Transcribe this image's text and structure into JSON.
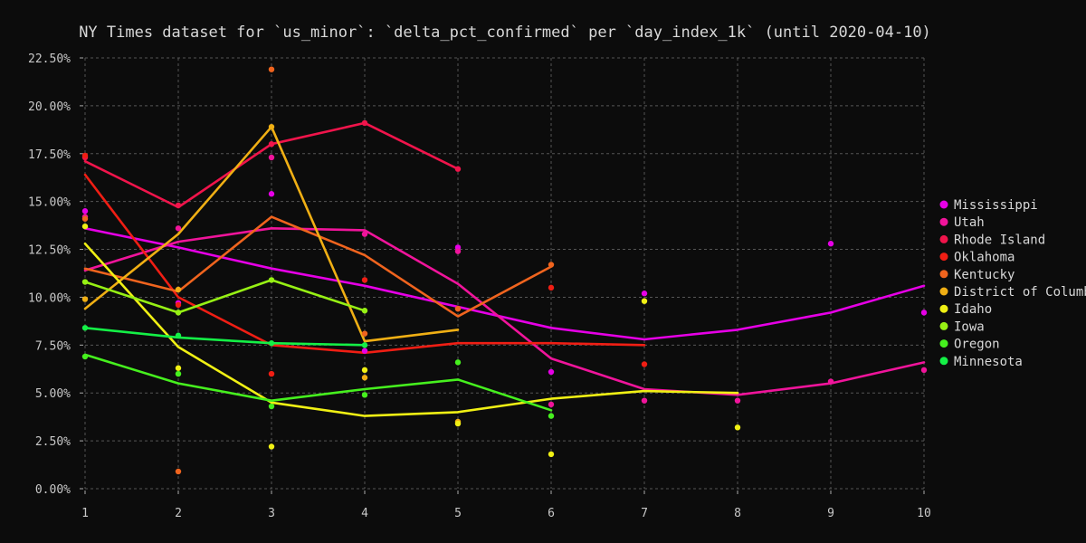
{
  "chart_data": {
    "type": "line",
    "title": "NY Times dataset for `us_minor`: `delta_pct_confirmed` per `day_index_1k` (until 2020-04-10)",
    "xlabel": "",
    "ylabel": "",
    "xlim": [
      1,
      10
    ],
    "ylim": [
      0,
      22.5
    ],
    "x_ticks": [
      "1",
      "2",
      "3",
      "4",
      "5",
      "6",
      "7",
      "8",
      "9",
      "10"
    ],
    "y_ticks": [
      "0.00%",
      "2.50%",
      "5.00%",
      "7.50%",
      "10.00%",
      "12.50%",
      "15.00%",
      "17.50%",
      "20.00%",
      "22.50%"
    ],
    "grid": true,
    "legend_position": "right",
    "series": [
      {
        "name": "Mississippi",
        "color": "#e600e6",
        "line": [
          [
            1,
            13.6
          ],
          [
            2,
            12.6
          ],
          [
            3,
            11.5
          ],
          [
            4,
            10.6
          ],
          [
            5,
            9.5
          ],
          [
            6,
            8.4
          ],
          [
            7,
            7.8
          ],
          [
            8,
            8.3
          ],
          [
            9,
            9.2
          ],
          [
            10,
            10.6
          ]
        ],
        "points": [
          [
            1,
            14.5
          ],
          [
            2,
            9.7
          ],
          [
            3,
            15.4
          ],
          [
            4,
            7.2
          ],
          [
            5,
            12.6
          ],
          [
            6,
            6.1
          ],
          [
            7,
            10.2
          ],
          [
            9,
            12.8
          ],
          [
            10,
            9.2
          ]
        ]
      },
      {
        "name": "Utah",
        "color": "#f0149b",
        "line": [
          [
            1,
            11.4
          ],
          [
            2,
            12.9
          ],
          [
            3,
            13.6
          ],
          [
            4,
            13.5
          ],
          [
            5,
            10.7
          ],
          [
            6,
            6.8
          ],
          [
            7,
            5.2
          ],
          [
            8,
            4.9
          ],
          [
            9,
            5.5
          ],
          [
            10,
            6.6
          ]
        ],
        "points": [
          [
            1,
            14.2
          ],
          [
            2,
            13.6
          ],
          [
            3,
            17.3
          ],
          [
            4,
            13.3
          ],
          [
            5,
            12.4
          ],
          [
            6,
            4.4
          ],
          [
            7,
            4.6
          ],
          [
            8,
            4.6
          ],
          [
            9,
            5.6
          ],
          [
            10,
            6.2
          ]
        ]
      },
      {
        "name": "Rhode Island",
        "color": "#f0144b",
        "line": [
          [
            1,
            17.1
          ],
          [
            2,
            14.7
          ],
          [
            3,
            18.0
          ],
          [
            4,
            19.1
          ],
          [
            5,
            16.7
          ]
        ],
        "points": [
          [
            1,
            17.3
          ],
          [
            2,
            14.8
          ],
          [
            3,
            18.0
          ],
          [
            4,
            19.1
          ],
          [
            5,
            16.7
          ]
        ]
      },
      {
        "name": "Oklahoma",
        "color": "#f01e14",
        "line": [
          [
            1,
            16.4
          ],
          [
            2,
            10.0
          ],
          [
            3,
            7.5
          ],
          [
            4,
            7.1
          ],
          [
            5,
            7.6
          ],
          [
            6,
            7.6
          ],
          [
            7,
            7.5
          ]
        ],
        "points": [
          [
            1,
            17.4
          ],
          [
            2,
            9.6
          ],
          [
            3,
            6.0
          ],
          [
            4,
            10.9
          ],
          [
            5,
            9.4
          ],
          [
            6,
            10.5
          ],
          [
            7,
            6.5
          ]
        ]
      },
      {
        "name": "Kentucky",
        "color": "#f0641e",
        "line": [
          [
            1,
            11.5
          ],
          [
            2,
            10.3
          ],
          [
            3,
            14.2
          ],
          [
            4,
            12.2
          ],
          [
            5,
            9.0
          ],
          [
            6,
            11.6
          ]
        ],
        "points": [
          [
            1,
            14.1
          ],
          [
            2,
            0.9
          ],
          [
            3,
            21.9
          ],
          [
            4,
            8.1
          ],
          [
            5,
            9.4
          ],
          [
            6,
            11.7
          ]
        ]
      },
      {
        "name": "District of Columbia",
        "color": "#f0af14",
        "line": [
          [
            1,
            9.4
          ],
          [
            2,
            13.3
          ],
          [
            3,
            18.9
          ],
          [
            4,
            7.7
          ],
          [
            5,
            8.3
          ]
        ],
        "points": [
          [
            1,
            9.9
          ],
          [
            2,
            10.4
          ],
          [
            3,
            18.9
          ],
          [
            4,
            5.8
          ],
          [
            5,
            3.5
          ]
        ]
      },
      {
        "name": "Idaho",
        "color": "#f0f014",
        "line": [
          [
            1,
            12.8
          ],
          [
            2,
            7.4
          ],
          [
            3,
            4.5
          ],
          [
            4,
            3.8
          ],
          [
            5,
            4.0
          ],
          [
            6,
            4.7
          ],
          [
            7,
            5.1
          ],
          [
            8,
            5.0
          ]
        ],
        "points": [
          [
            1,
            13.7
          ],
          [
            2,
            6.3
          ],
          [
            3,
            2.2
          ],
          [
            4,
            6.2
          ],
          [
            5,
            3.4
          ],
          [
            6,
            1.8
          ],
          [
            7,
            9.8
          ],
          [
            8,
            3.2
          ]
        ]
      },
      {
        "name": "Iowa",
        "color": "#96f014",
        "line": [
          [
            1,
            10.8
          ],
          [
            2,
            9.2
          ],
          [
            3,
            10.9
          ],
          [
            4,
            9.3
          ]
        ],
        "points": [
          [
            1,
            10.8
          ],
          [
            2,
            9.2
          ],
          [
            3,
            10.9
          ],
          [
            4,
            9.3
          ]
        ]
      },
      {
        "name": "Oregon",
        "color": "#46f01e",
        "line": [
          [
            1,
            7.0
          ],
          [
            2,
            5.5
          ],
          [
            3,
            4.6
          ],
          [
            4,
            5.2
          ],
          [
            5,
            5.7
          ],
          [
            6,
            4.1
          ]
        ],
        "points": [
          [
            1,
            6.9
          ],
          [
            2,
            6.0
          ],
          [
            3,
            4.3
          ],
          [
            4,
            4.9
          ],
          [
            5,
            6.6
          ],
          [
            6,
            3.8
          ]
        ]
      },
      {
        "name": "Minnesota",
        "color": "#14f046",
        "line": [
          [
            1,
            8.4
          ],
          [
            2,
            7.9
          ],
          [
            3,
            7.6
          ],
          [
            4,
            7.5
          ]
        ],
        "points": [
          [
            1,
            8.4
          ],
          [
            2,
            8.0
          ],
          [
            3,
            7.6
          ],
          [
            4,
            7.5
          ]
        ]
      }
    ]
  }
}
